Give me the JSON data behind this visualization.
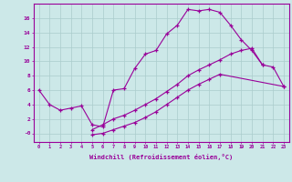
{
  "xlabel": "Windchill (Refroidissement éolien,°C)",
  "bg_color": "#cce8e8",
  "grid_color": "#aacccc",
  "line_color": "#990099",
  "xlim": [
    -0.5,
    23.5
  ],
  "ylim": [
    -1.2,
    18.0
  ],
  "xticks": [
    0,
    1,
    2,
    3,
    4,
    5,
    6,
    7,
    8,
    9,
    10,
    11,
    12,
    13,
    14,
    15,
    16,
    17,
    18,
    19,
    20,
    21,
    22,
    23
  ],
  "yticks": [
    0,
    2,
    4,
    6,
    8,
    10,
    12,
    14,
    16
  ],
  "ytick_labels": [
    "-0",
    "2",
    "4",
    "6",
    "8",
    "10",
    "12",
    "14",
    "16"
  ],
  "line1_x": [
    0,
    1,
    2,
    3,
    4,
    5,
    6,
    7,
    8,
    9,
    10,
    11,
    12,
    13,
    14,
    15,
    16,
    17,
    18,
    19,
    20,
    21
  ],
  "line1_y": [
    6.0,
    4.0,
    3.2,
    3.5,
    3.8,
    1.2,
    0.9,
    6.0,
    6.2,
    9.0,
    11.0,
    11.5,
    13.8,
    15.0,
    17.2,
    17.0,
    17.2,
    16.8,
    15.0,
    13.0,
    11.5,
    9.5
  ],
  "line2_x": [
    5,
    6,
    7,
    8,
    9,
    10,
    11,
    12,
    13,
    14,
    15,
    16,
    17,
    18,
    19,
    20,
    21,
    22,
    23
  ],
  "line2_y": [
    0.5,
    1.2,
    2.0,
    2.5,
    3.2,
    4.0,
    4.8,
    5.8,
    6.8,
    8.0,
    8.8,
    9.5,
    10.2,
    11.0,
    11.5,
    11.8,
    9.5,
    9.2,
    6.5
  ],
  "line3_x": [
    5,
    6,
    7,
    8,
    9,
    10,
    11,
    12,
    13,
    14,
    15,
    16,
    17,
    23
  ],
  "line3_y": [
    -0.2,
    0.0,
    0.5,
    1.0,
    1.5,
    2.2,
    3.0,
    4.0,
    5.0,
    6.0,
    6.8,
    7.5,
    8.2,
    6.5
  ]
}
